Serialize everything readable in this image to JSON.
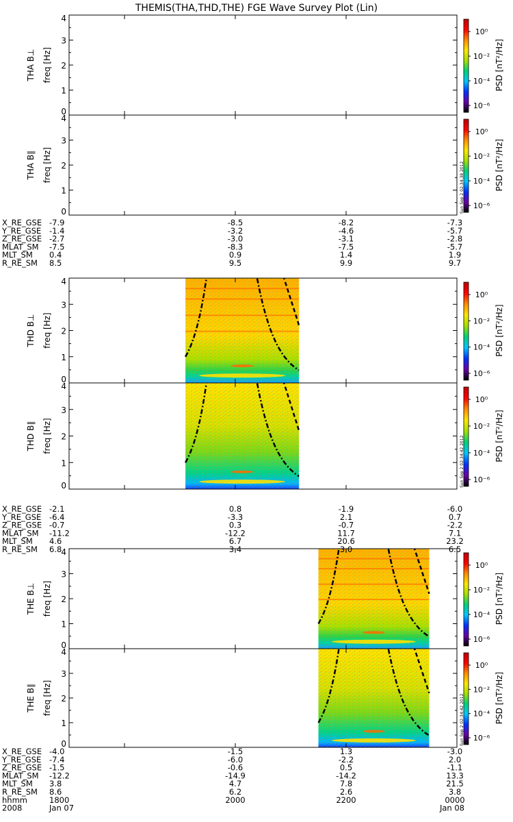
{
  "title": "THEMIS(THA,THD,THE) FGE Wave Survey Plot (Lin)",
  "colorbar": {
    "label": "PSD [nT²/Hz]",
    "ticks": [
      "10⁰",
      "10⁻²",
      "10⁻⁴",
      "10⁻⁶"
    ],
    "colors": [
      "#000000",
      "#6a00a8",
      "#0033ff",
      "#00c8ff",
      "#00d27a",
      "#a6e000",
      "#ffe600",
      "#ff8c00",
      "#ff0000",
      "#c00000"
    ]
  },
  "stamps": [
    "Sun Sep  2 02:34:38 2012",
    "Sun Sep  2 02:34:42 2012",
    "Sun Sep  2 02:34:42 2012"
  ],
  "chart_data": {
    "type": "heatmap",
    "x_ticks": [
      "1800",
      "2000",
      "2200",
      "0000"
    ],
    "x_ticks_bottom": [
      "1800",
      "2000",
      "2200",
      "0000"
    ],
    "x_range_hours": [
      17.0,
      24.0
    ],
    "date_left": "2008",
    "date_left2": "Jan 07",
    "date_right": "Jan 08",
    "hhmm_label": "hhmm",
    "y_range": [
      0,
      4
    ],
    "y_ticks": [
      "0",
      "1",
      "2",
      "3",
      "4"
    ],
    "panels": [
      {
        "probe": "THA",
        "component": "THA B⊥",
        "ylabel": "freq [Hz]",
        "data_start_hour": null,
        "data_end_hour": null
      },
      {
        "probe": "THA",
        "component": "THA B∥",
        "ylabel": "freq [Hz]",
        "data_start_hour": null,
        "data_end_hour": null
      },
      {
        "probe": "THD",
        "component": "THD B⊥",
        "ylabel": "freq [Hz]",
        "data_start_hour": 19.1,
        "data_end_hour": 21.15
      },
      {
        "probe": "THD",
        "component": "THD B∥",
        "ylabel": "freq [Hz]",
        "data_start_hour": 19.1,
        "data_end_hour": 21.15
      },
      {
        "probe": "THE",
        "component": "THE B⊥",
        "ylabel": "freq [Hz]",
        "data_start_hour": 21.5,
        "data_end_hour": 23.5
      },
      {
        "probe": "THE",
        "component": "THE B∥",
        "ylabel": "freq [Hz]",
        "data_start_hour": 21.5,
        "data_end_hour": 23.5
      }
    ],
    "ephemeris": [
      {
        "probe": "THA",
        "rows": [
          {
            "label": "X_RE_GSE",
            "values": [
              "-7.9",
              "-8.5",
              "-8.2",
              "-7.3"
            ]
          },
          {
            "label": "Y_RE_GSE",
            "values": [
              "-1.4",
              "-3.2",
              "-4.6",
              "-5.7"
            ]
          },
          {
            "label": "Z_RE_GSE",
            "values": [
              "-2.7",
              "-3.0",
              "-3.1",
              "-2.8"
            ]
          },
          {
            "label": "MLAT_SM",
            "values": [
              "-7.5",
              "-8.3",
              "-7.5",
              "-5.7"
            ]
          },
          {
            "label": "MLT_SM",
            "values": [
              "0.4",
              "0.9",
              "1.4",
              "1.9"
            ]
          },
          {
            "label": "R_RE_SM",
            "values": [
              "8.5",
              "9.5",
              "9.9",
              "9.7"
            ]
          }
        ]
      },
      {
        "probe": "THD",
        "rows": [
          {
            "label": "X_RE_GSE",
            "values": [
              "-2.1",
              "0.8",
              "-1.9",
              "-6.0"
            ]
          },
          {
            "label": "Y_RE_GSE",
            "values": [
              "-6.4",
              "-3.3",
              "2.1",
              "0.7"
            ]
          },
          {
            "label": "Z_RE_GSE",
            "values": [
              "-0.7",
              "0.3",
              "-0.7",
              "-2.2"
            ]
          },
          {
            "label": "MLAT_SM",
            "values": [
              "-11.2",
              "-12.2",
              "11.7",
              "7.1"
            ]
          },
          {
            "label": "MLT_SM",
            "values": [
              "4.6",
              "6.7",
              "20.6",
              "23.2"
            ]
          },
          {
            "label": "R_RE_SM",
            "values": [
              "6.8",
              "3.4",
              "3.0",
              "6.5"
            ]
          }
        ]
      },
      {
        "probe": "THE",
        "rows": [
          {
            "label": "X_RE_GSE",
            "values": [
              "-4.0",
              "-1.5",
              "1.3",
              "-3.0"
            ]
          },
          {
            "label": "Y_RE_GSE",
            "values": [
              "-7.4",
              "-6.0",
              "-2.2",
              "2.0"
            ]
          },
          {
            "label": "Z_RE_GSE",
            "values": [
              "-1.5",
              "-0.6",
              "0.5",
              "-1.1"
            ]
          },
          {
            "label": "MLAT_SM",
            "values": [
              "-12.2",
              "-14.9",
              "-14.2",
              "13.3"
            ]
          },
          {
            "label": "MLT_SM",
            "values": [
              "3.8",
              "4.7",
              "7.8",
              "21.5"
            ]
          },
          {
            "label": "R_RE_SM",
            "values": [
              "8.6",
              "6.2",
              "2.6",
              "3.8"
            ]
          }
        ]
      }
    ]
  }
}
